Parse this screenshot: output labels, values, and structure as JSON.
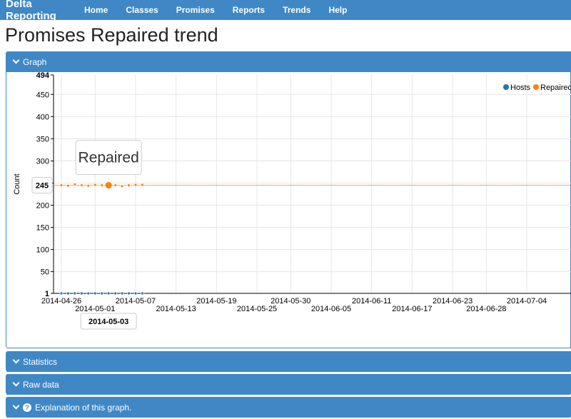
{
  "navbar": {
    "brand": "Delta Reporting",
    "items": [
      "Home",
      "Classes",
      "Promises",
      "Reports",
      "Trends",
      "Help"
    ]
  },
  "page_title": "Promises Repaired trend",
  "panels": {
    "graph": "Graph",
    "statistics": "Statistics",
    "raw_data": "Raw data",
    "explanation": "Explanation of this graph.",
    "explanation_icon": "question-circle-icon"
  },
  "colors": {
    "accent": "#3f88c5",
    "hosts": "#1f77b4",
    "repaired": "#ff7f0e"
  },
  "chart_data": {
    "type": "line",
    "ylabel": "Count",
    "ylim": [
      1,
      494
    ],
    "yticks": [
      1,
      50,
      100,
      150,
      200,
      250,
      300,
      350,
      400,
      450,
      494
    ],
    "xticks": [
      "2014-04-26",
      "2014-05-01",
      "2014-05-07",
      "2014-05-13",
      "2014-05-19",
      "2014-05-25",
      "2014-05-30",
      "2014-06-05",
      "2014-06-11",
      "2014-06-17",
      "2014-06-23",
      "2014-06-28",
      "2014-07-04"
    ],
    "x": [
      "2014-04-26",
      "2014-04-27",
      "2014-04-28",
      "2014-04-29",
      "2014-04-30",
      "2014-05-01",
      "2014-05-02",
      "2014-05-03",
      "2014-05-04",
      "2014-05-05",
      "2014-05-06",
      "2014-05-07",
      "2014-05-08"
    ],
    "series": [
      {
        "name": "Hosts",
        "values": [
          1,
          1,
          1,
          1,
          1,
          1,
          1,
          1,
          1,
          1,
          1,
          1,
          1
        ]
      },
      {
        "name": "Repaired",
        "values": [
          245,
          244,
          247,
          245,
          244,
          246,
          245,
          245,
          245,
          243,
          245,
          246,
          246
        ],
        "trend": 245
      }
    ],
    "legend": "top-right",
    "grid": true,
    "tooltip": {
      "series": "Repaired",
      "x": "2014-05-03",
      "y": 245
    }
  }
}
